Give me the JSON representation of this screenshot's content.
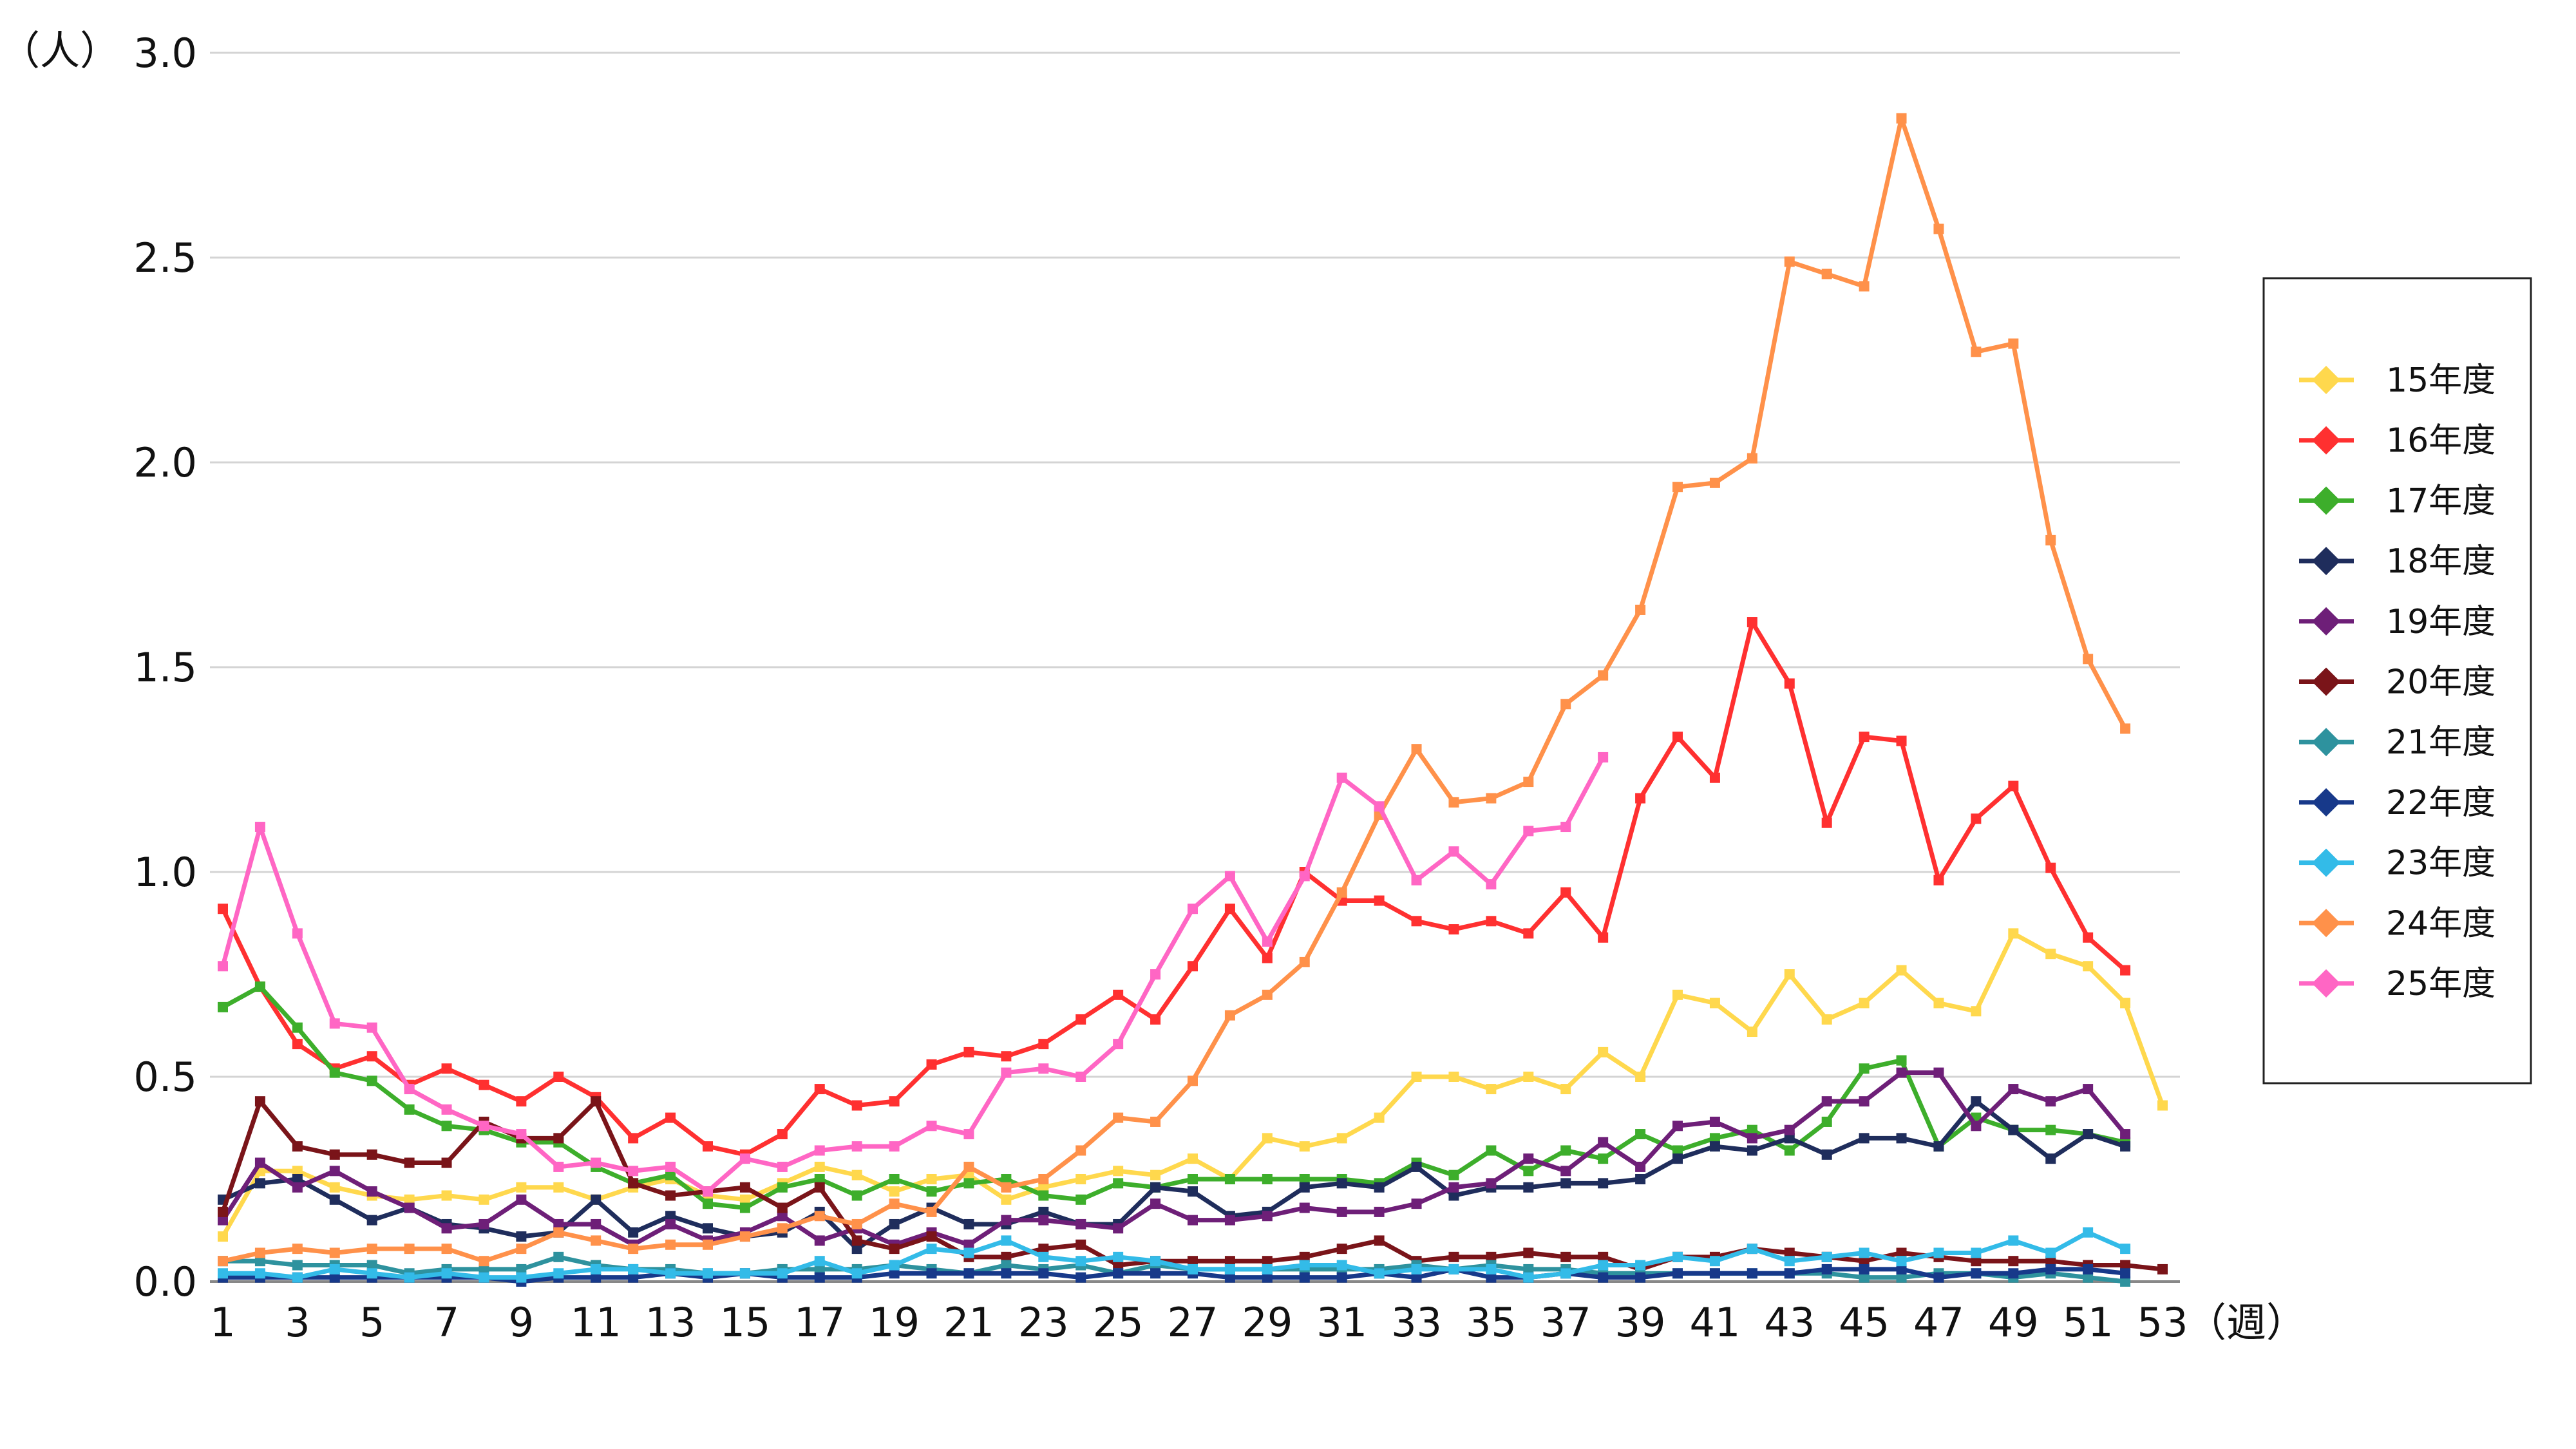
{
  "chart_data": {
    "type": "line",
    "title": "",
    "xlabel": "（週）",
    "ylabel": "（人）",
    "ylim": [
      0,
      3.0
    ],
    "xlim": [
      1,
      53
    ],
    "yticks": [
      "0.0",
      "0.5",
      "1.0",
      "1.5",
      "2.0",
      "2.5",
      "3.0"
    ],
    "xticks": [
      "1",
      "3",
      "5",
      "7",
      "9",
      "11",
      "13",
      "15",
      "17",
      "19",
      "21",
      "23",
      "25",
      "27",
      "29",
      "31",
      "33",
      "35",
      "37",
      "39",
      "41",
      "43",
      "45",
      "47",
      "49",
      "51",
      "53"
    ],
    "grid": true,
    "legend_position": "right",
    "series": [
      {
        "name": "15年度",
        "color": "#FFD84D",
        "values": [
          0.11,
          0.27,
          0.27,
          0.23,
          0.21,
          0.2,
          0.21,
          0.2,
          0.23,
          0.23,
          0.2,
          0.23,
          0.25,
          0.21,
          0.2,
          0.24,
          0.28,
          0.26,
          0.22,
          0.25,
          0.26,
          0.2,
          0.23,
          0.25,
          0.27,
          0.26,
          0.3,
          0.25,
          0.35,
          0.33,
          0.35,
          0.4,
          0.5,
          0.5,
          0.47,
          0.5,
          0.47,
          0.56,
          0.5,
          0.7,
          0.68,
          0.61,
          0.75,
          0.64,
          0.68,
          0.76,
          0.68,
          0.66,
          0.85,
          0.8,
          0.77,
          0.68,
          0.43
        ]
      },
      {
        "name": "16年度",
        "color": "#FF3030",
        "values": [
          0.91,
          0.72,
          0.58,
          0.52,
          0.55,
          0.48,
          0.52,
          0.48,
          0.44,
          0.5,
          0.45,
          0.35,
          0.4,
          0.33,
          0.31,
          0.36,
          0.47,
          0.43,
          0.44,
          0.53,
          0.56,
          0.55,
          0.58,
          0.64,
          0.7,
          0.64,
          0.77,
          0.91,
          0.79,
          1.0,
          0.93,
          0.93,
          0.88,
          0.86,
          0.88,
          0.85,
          0.95,
          0.84,
          1.18,
          1.33,
          1.23,
          1.61,
          1.46,
          1.12,
          1.33,
          1.32,
          0.98,
          1.13,
          1.21,
          1.01,
          0.84,
          0.76
        ]
      },
      {
        "name": "17年度",
        "color": "#3DAE2B",
        "values": [
          0.67,
          0.72,
          0.62,
          0.51,
          0.49,
          0.42,
          0.38,
          0.37,
          0.34,
          0.34,
          0.28,
          0.24,
          0.26,
          0.19,
          0.18,
          0.23,
          0.25,
          0.21,
          0.25,
          0.22,
          0.24,
          0.25,
          0.21,
          0.2,
          0.24,
          0.23,
          0.25,
          0.25,
          0.25,
          0.25,
          0.25,
          0.24,
          0.29,
          0.26,
          0.32,
          0.27,
          0.32,
          0.3,
          0.36,
          0.32,
          0.35,
          0.37,
          0.32,
          0.39,
          0.52,
          0.54,
          0.33,
          0.4,
          0.37,
          0.37,
          0.36,
          0.34
        ]
      },
      {
        "name": "18年度",
        "color": "#1F2D5C",
        "values": [
          0.2,
          0.24,
          0.25,
          0.2,
          0.15,
          0.18,
          0.14,
          0.13,
          0.11,
          0.12,
          0.2,
          0.12,
          0.16,
          0.13,
          0.11,
          0.12,
          0.17,
          0.08,
          0.14,
          0.18,
          0.14,
          0.14,
          0.17,
          0.14,
          0.14,
          0.23,
          0.22,
          0.16,
          0.17,
          0.23,
          0.24,
          0.23,
          0.28,
          0.21,
          0.23,
          0.23,
          0.24,
          0.24,
          0.25,
          0.3,
          0.33,
          0.32,
          0.35,
          0.31,
          0.35,
          0.35,
          0.33,
          0.44,
          0.37,
          0.3,
          0.36,
          0.33
        ]
      },
      {
        "name": "19年度",
        "color": "#6E1F78",
        "values": [
          0.15,
          0.29,
          0.23,
          0.27,
          0.22,
          0.18,
          0.13,
          0.14,
          0.2,
          0.14,
          0.14,
          0.09,
          0.14,
          0.1,
          0.12,
          0.16,
          0.1,
          0.13,
          0.09,
          0.12,
          0.09,
          0.15,
          0.15,
          0.14,
          0.13,
          0.19,
          0.15,
          0.15,
          0.16,
          0.18,
          0.17,
          0.17,
          0.19,
          0.23,
          0.24,
          0.3,
          0.27,
          0.34,
          0.28,
          0.38,
          0.39,
          0.35,
          0.37,
          0.44,
          0.44,
          0.51,
          0.51,
          0.38,
          0.47,
          0.44,
          0.47,
          0.36
        ]
      },
      {
        "name": "20年度",
        "color": "#7A1419",
        "values": [
          0.17,
          0.44,
          0.33,
          0.31,
          0.31,
          0.29,
          0.29,
          0.39,
          0.35,
          0.35,
          0.44,
          0.24,
          0.21,
          0.22,
          0.23,
          0.18,
          0.23,
          0.1,
          0.08,
          0.11,
          0.06,
          0.06,
          0.08,
          0.09,
          0.04,
          0.05,
          0.05,
          0.05,
          0.05,
          0.06,
          0.08,
          0.1,
          0.05,
          0.06,
          0.06,
          0.07,
          0.06,
          0.06,
          0.03,
          0.06,
          0.06,
          0.08,
          0.07,
          0.06,
          0.05,
          0.07,
          0.06,
          0.05,
          0.05,
          0.05,
          0.04,
          0.04,
          0.03
        ]
      },
      {
        "name": "21年度",
        "color": "#2E929E",
        "values": [
          0.05,
          0.05,
          0.04,
          0.04,
          0.04,
          0.02,
          0.03,
          0.03,
          0.03,
          0.06,
          0.04,
          0.03,
          0.03,
          0.02,
          0.02,
          0.03,
          0.03,
          0.03,
          0.04,
          0.03,
          0.02,
          0.04,
          0.03,
          0.04,
          0.02,
          0.04,
          0.03,
          0.03,
          0.03,
          0.03,
          0.03,
          0.03,
          0.04,
          0.03,
          0.04,
          0.03,
          0.03,
          0.02,
          0.02,
          0.02,
          0.02,
          0.02,
          0.02,
          0.02,
          0.01,
          0.01,
          0.02,
          0.02,
          0.01,
          0.02,
          0.01,
          0.0
        ]
      },
      {
        "name": "22年度",
        "color": "#17398A",
        "values": [
          0.01,
          0.01,
          0.01,
          0.01,
          0.01,
          0.01,
          0.01,
          0.01,
          0.0,
          0.01,
          0.01,
          0.01,
          0.02,
          0.01,
          0.02,
          0.01,
          0.01,
          0.01,
          0.02,
          0.02,
          0.02,
          0.02,
          0.02,
          0.01,
          0.02,
          0.02,
          0.02,
          0.01,
          0.01,
          0.01,
          0.01,
          0.02,
          0.01,
          0.03,
          0.01,
          0.01,
          0.02,
          0.01,
          0.01,
          0.02,
          0.02,
          0.02,
          0.02,
          0.03,
          0.03,
          0.03,
          0.01,
          0.02,
          0.02,
          0.03,
          0.03,
          0.02
        ]
      },
      {
        "name": "23年度",
        "color": "#33BBE8",
        "values": [
          0.02,
          0.02,
          0.01,
          0.03,
          0.02,
          0.01,
          0.02,
          0.01,
          0.01,
          0.02,
          0.03,
          0.03,
          0.02,
          0.02,
          0.02,
          0.02,
          0.05,
          0.02,
          0.04,
          0.08,
          0.07,
          0.1,
          0.06,
          0.05,
          0.06,
          0.05,
          0.03,
          0.03,
          0.03,
          0.04,
          0.04,
          0.02,
          0.03,
          0.03,
          0.03,
          0.01,
          0.02,
          0.04,
          0.04,
          0.06,
          0.05,
          0.08,
          0.05,
          0.06,
          0.07,
          0.05,
          0.07,
          0.07,
          0.1,
          0.07,
          0.12,
          0.08
        ]
      },
      {
        "name": "24年度",
        "color": "#FF914A",
        "values": [
          0.05,
          0.07,
          0.08,
          0.07,
          0.08,
          0.08,
          0.08,
          0.05,
          0.08,
          0.12,
          0.1,
          0.08,
          0.09,
          0.09,
          0.11,
          0.13,
          0.16,
          0.14,
          0.19,
          0.17,
          0.28,
          0.23,
          0.25,
          0.32,
          0.4,
          0.39,
          0.49,
          0.65,
          0.7,
          0.78,
          0.95,
          1.14,
          1.3,
          1.17,
          1.18,
          1.22,
          1.41,
          1.48,
          1.64,
          1.94,
          1.95,
          2.01,
          2.49,
          2.46,
          2.43,
          2.84,
          2.57,
          2.27,
          2.29,
          1.81,
          1.52,
          1.35
        ]
      },
      {
        "name": "25年度",
        "color": "#FF66C4",
        "values": [
          0.77,
          1.11,
          0.85,
          0.63,
          0.62,
          0.47,
          0.42,
          0.38,
          0.36,
          0.28,
          0.29,
          0.27,
          0.28,
          0.22,
          0.3,
          0.28,
          0.32,
          0.33,
          0.33,
          0.38,
          0.36,
          0.51,
          0.52,
          0.5,
          0.58,
          0.75,
          0.91,
          0.99,
          0.83,
          0.99,
          1.23,
          1.16,
          0.98,
          1.05,
          0.97,
          1.1,
          1.11,
          1.28
        ]
      }
    ]
  }
}
